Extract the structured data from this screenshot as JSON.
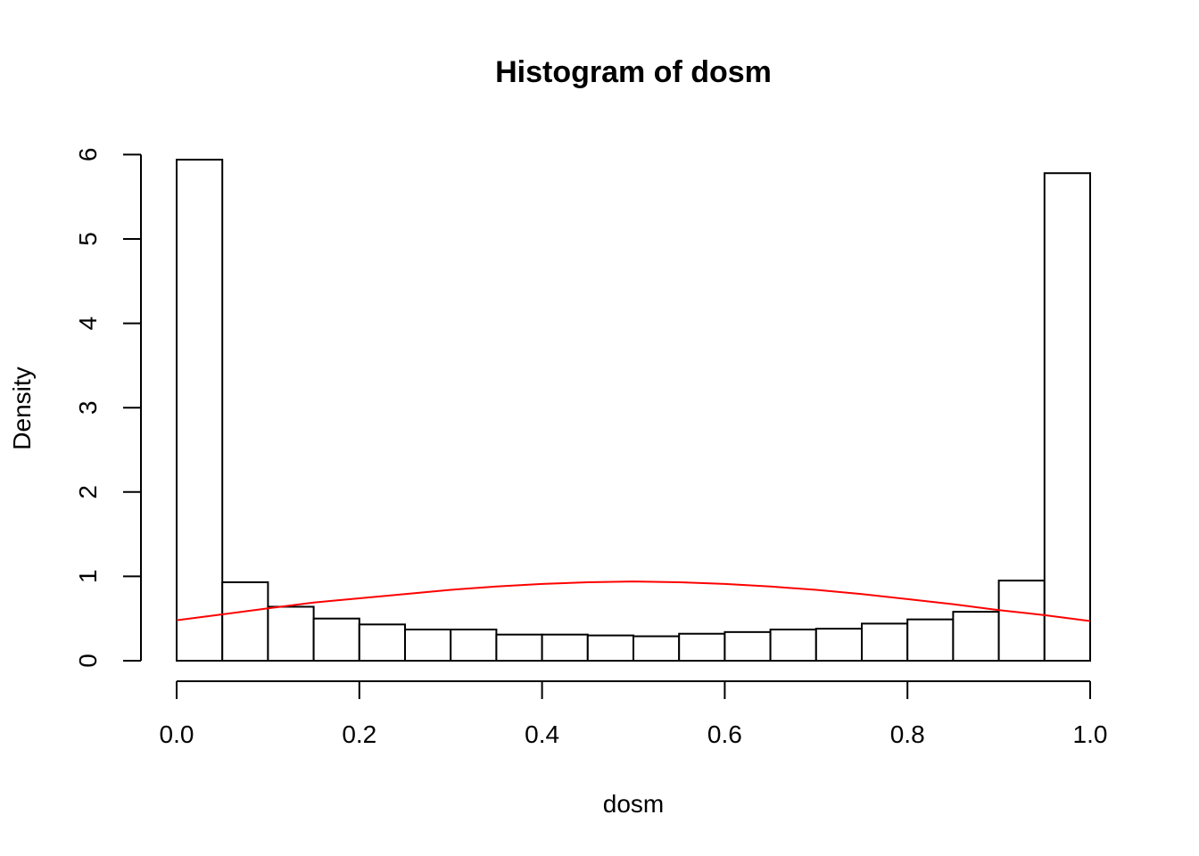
{
  "chart_data": {
    "type": "bar",
    "title": "Histogram of dosm",
    "xlabel": "dosm",
    "ylabel": "Density",
    "xlim": [
      0,
      1
    ],
    "ylim": [
      0,
      6
    ],
    "x_ticks": [
      "0.0",
      "0.2",
      "0.4",
      "0.6",
      "0.8",
      "1.0"
    ],
    "x_tick_values": [
      0,
      0.2,
      0.4,
      0.6,
      0.8,
      1.0
    ],
    "y_ticks": [
      "0",
      "1",
      "2",
      "3",
      "4",
      "5",
      "6"
    ],
    "y_tick_values": [
      0,
      1,
      2,
      3,
      4,
      5,
      6
    ],
    "bin_width": 0.05,
    "bin_starts": [
      0,
      0.05,
      0.1,
      0.15,
      0.2,
      0.25,
      0.3,
      0.35,
      0.4,
      0.45,
      0.5,
      0.55,
      0.6,
      0.65,
      0.7,
      0.75,
      0.8,
      0.85,
      0.9,
      0.95
    ],
    "values": [
      5.94,
      0.93,
      0.64,
      0.5,
      0.43,
      0.37,
      0.37,
      0.31,
      0.31,
      0.3,
      0.29,
      0.32,
      0.34,
      0.37,
      0.38,
      0.44,
      0.49,
      0.58,
      0.95,
      5.78
    ],
    "curve": {
      "x": [
        0,
        0.05,
        0.1,
        0.15,
        0.2,
        0.25,
        0.3,
        0.35,
        0.4,
        0.45,
        0.5,
        0.55,
        0.6,
        0.65,
        0.7,
        0.75,
        0.8,
        0.85,
        0.9,
        0.95,
        1.0
      ],
      "y": [
        0.48,
        0.55,
        0.62,
        0.69,
        0.74,
        0.79,
        0.84,
        0.88,
        0.91,
        0.93,
        0.94,
        0.93,
        0.91,
        0.88,
        0.84,
        0.79,
        0.73,
        0.67,
        0.6,
        0.54,
        0.47
      ],
      "color": "#ff0000"
    },
    "bar_fill": "#ffffff",
    "bar_stroke": "#000000",
    "grid": false,
    "legend": "none"
  }
}
